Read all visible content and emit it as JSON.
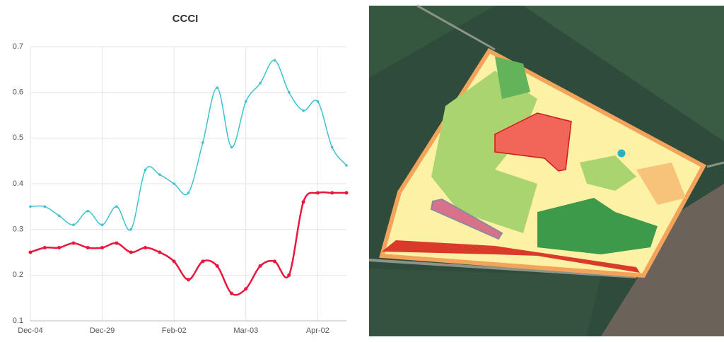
{
  "chart_data": {
    "type": "line",
    "title": "CCCI",
    "categories": [
      "Dec-04",
      null,
      null,
      null,
      null,
      "Dec-29",
      null,
      null,
      null,
      null,
      "Feb-02",
      null,
      null,
      null,
      null,
      "Mar-03",
      null,
      null,
      null,
      null,
      "Apr-02",
      null,
      null
    ],
    "series": [
      {
        "color": "#3cc3cf",
        "values": [
          0.35,
          0.35,
          0.33,
          0.31,
          0.34,
          0.31,
          0.35,
          0.3,
          0.43,
          0.42,
          0.4,
          0.38,
          0.49,
          0.61,
          0.48,
          0.58,
          0.62,
          0.67,
          0.6,
          0.56,
          0.58,
          0.48,
          0.44
        ]
      },
      {
        "color": "#e8173f",
        "values": [
          0.25,
          0.26,
          0.26,
          0.27,
          0.26,
          0.26,
          0.27,
          0.25,
          0.26,
          0.25,
          0.23,
          0.19,
          0.23,
          0.22,
          0.16,
          0.17,
          0.22,
          0.23,
          0.2,
          0.36,
          0.38,
          0.38,
          0.38
        ]
      }
    ],
    "ylim": [
      0.1,
      0.7
    ],
    "yticks": [
      0.1,
      0.2,
      0.3,
      0.4,
      0.5,
      0.6,
      0.7
    ],
    "grid": true
  }
}
